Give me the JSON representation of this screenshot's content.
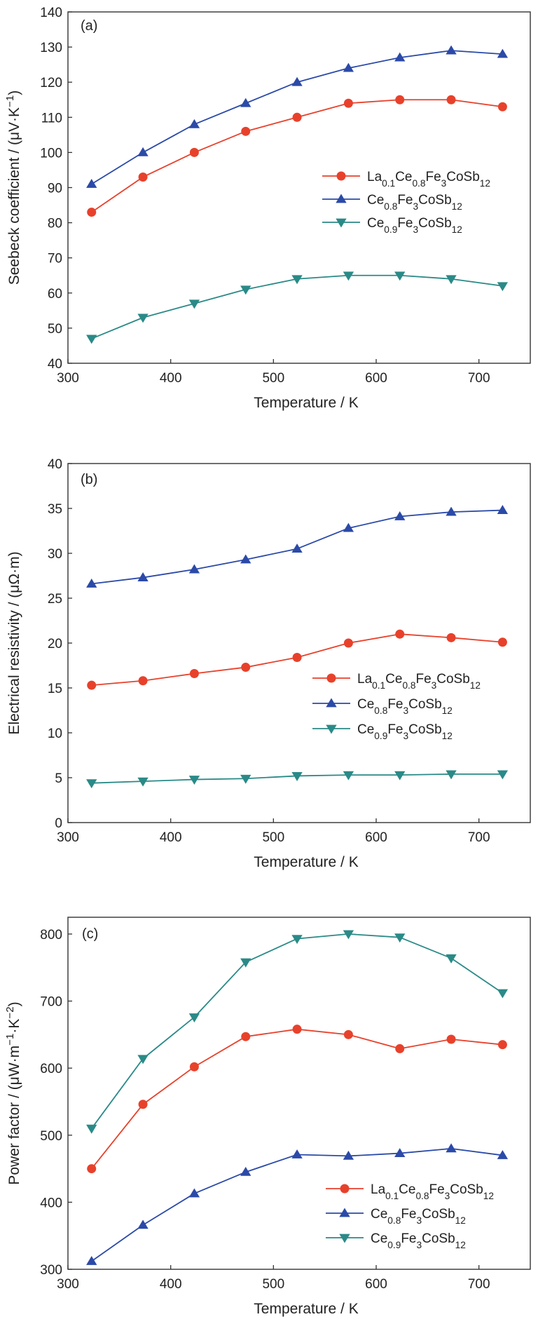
{
  "colors": {
    "la_ce08": "#e8412b",
    "ce08": "#2b4aa8",
    "ce09": "#2a8a87"
  },
  "legend": [
    {
      "key": "la_ce08",
      "marker": "circle",
      "parts": [
        [
          "La",
          ""
        ],
        [
          "0.1",
          "sub"
        ],
        [
          "Ce",
          ""
        ],
        [
          "0.8",
          "sub"
        ],
        [
          "Fe",
          ""
        ],
        [
          "3",
          "sub"
        ],
        [
          "CoSb",
          ""
        ],
        [
          "12",
          "sub"
        ]
      ]
    },
    {
      "key": "ce08",
      "marker": "triangle-up",
      "parts": [
        [
          "Ce",
          ""
        ],
        [
          "0.8",
          "sub"
        ],
        [
          "Fe",
          ""
        ],
        [
          "3",
          "sub"
        ],
        [
          "CoSb",
          ""
        ],
        [
          "12",
          "sub"
        ]
      ]
    },
    {
      "key": "ce09",
      "marker": "triangle-down",
      "parts": [
        [
          "Ce",
          ""
        ],
        [
          "0.9",
          "sub"
        ],
        [
          "Fe",
          ""
        ],
        [
          "3",
          "sub"
        ],
        [
          "CoSb",
          ""
        ],
        [
          "12",
          "sub"
        ]
      ]
    }
  ],
  "chart_data": [
    {
      "type": "line",
      "panel_label": "(a)",
      "xlabel": "Temperature / K",
      "ylabel_parts": [
        [
          "Seebeck coefficient / (μV·K",
          ""
        ],
        [
          "−1",
          "sup"
        ],
        [
          ")",
          ""
        ]
      ],
      "xlim": [
        300,
        750
      ],
      "ylim": [
        40,
        140
      ],
      "xticks": [
        300,
        400,
        500,
        600,
        700
      ],
      "yticks": [
        40,
        50,
        60,
        70,
        80,
        90,
        100,
        110,
        120,
        130,
        140
      ],
      "legend_position": "middle-right",
      "x": [
        323,
        373,
        423,
        473,
        523,
        573,
        623,
        673,
        723
      ],
      "series": [
        {
          "key": "la_ce08",
          "values": [
            83,
            93,
            100,
            106,
            110,
            114,
            115,
            115,
            113
          ]
        },
        {
          "key": "ce08",
          "values": [
            91,
            100,
            108,
            114,
            120,
            124,
            127,
            129,
            128
          ]
        },
        {
          "key": "ce09",
          "values": [
            47,
            53,
            57,
            61,
            64,
            65,
            65,
            64,
            62
          ]
        }
      ]
    },
    {
      "type": "line",
      "panel_label": "(b)",
      "xlabel": "Temperature / K",
      "ylabel_parts": [
        [
          "Electrical resistivity / (μΩ·m)",
          ""
        ]
      ],
      "xlim": [
        300,
        750
      ],
      "ylim": [
        0,
        40
      ],
      "xticks": [
        300,
        400,
        500,
        600,
        700
      ],
      "yticks": [
        0,
        5,
        10,
        15,
        20,
        25,
        30,
        35,
        40
      ],
      "legend_position": "lower-right",
      "x": [
        323,
        373,
        423,
        473,
        523,
        573,
        623,
        673,
        723
      ],
      "series": [
        {
          "key": "la_ce08",
          "values": [
            15.3,
            15.8,
            16.6,
            17.3,
            18.4,
            20.0,
            21.0,
            20.6,
            20.1
          ]
        },
        {
          "key": "ce08",
          "values": [
            26.6,
            27.3,
            28.2,
            29.3,
            30.5,
            32.8,
            34.1,
            34.6,
            34.8
          ]
        },
        {
          "key": "ce09",
          "values": [
            4.4,
            4.6,
            4.8,
            4.9,
            5.2,
            5.3,
            5.3,
            5.4,
            5.4
          ]
        }
      ]
    },
    {
      "type": "line",
      "panel_label": "(c)",
      "xlabel": "Temperature / K",
      "ylabel_parts": [
        [
          "Power factor / (μW·m",
          ""
        ],
        [
          "−1",
          "sup"
        ],
        [
          "·K",
          ""
        ],
        [
          "−2",
          "sup"
        ],
        [
          ")",
          ""
        ]
      ],
      "xlim": [
        300,
        750
      ],
      "ylim": [
        300,
        825
      ],
      "xticks": [
        300,
        400,
        500,
        600,
        700
      ],
      "yticks": [
        300,
        400,
        500,
        600,
        700,
        800
      ],
      "legend_position": "lower-right",
      "x": [
        323,
        373,
        423,
        473,
        523,
        573,
        623,
        673,
        723
      ],
      "series": [
        {
          "key": "la_ce08",
          "values": [
            450,
            546,
            602,
            647,
            658,
            650,
            629,
            643,
            635
          ]
        },
        {
          "key": "ce08",
          "values": [
            312,
            366,
            413,
            445,
            471,
            469,
            473,
            480,
            470
          ]
        },
        {
          "key": "ce09",
          "values": [
            510,
            614,
            676,
            758,
            793,
            800,
            795,
            764,
            712
          ]
        }
      ]
    }
  ]
}
